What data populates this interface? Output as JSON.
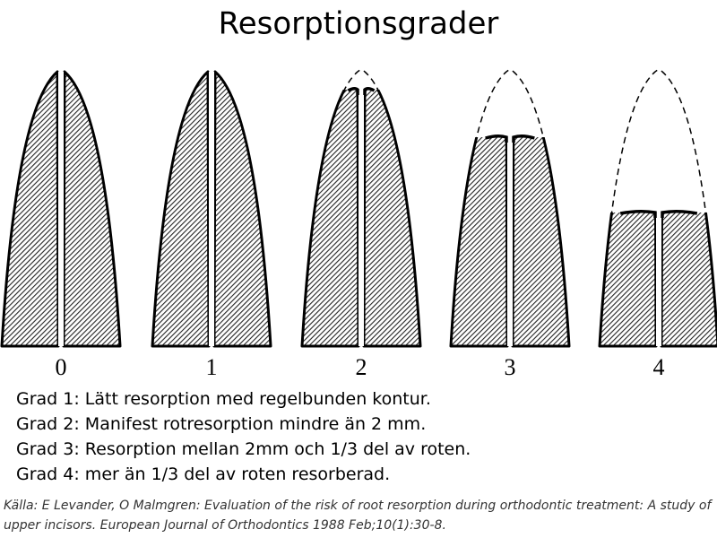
{
  "title": "Resorptionsgrader",
  "figures": [
    {
      "label": "0"
    },
    {
      "label": "1"
    },
    {
      "label": "2"
    },
    {
      "label": "3"
    },
    {
      "label": "4"
    }
  ],
  "descriptions": [
    "Grad 1: Lätt resorption med regelbunden kontur.",
    "Grad 2: Manifest rotresorption mindre än 2 mm.",
    "Grad 3: Resorption mellan 2mm och 1/3 del av roten.",
    "Grad 4: mer än 1/3 del av roten resorberad."
  ],
  "source": "Källa: E Levander, O Malmgren: Evaluation of the risk of root resorption during orthodontic treatment: A study of upper incisors. European Journal of Orthodontics 1988 Feb;10(1):30-8."
}
